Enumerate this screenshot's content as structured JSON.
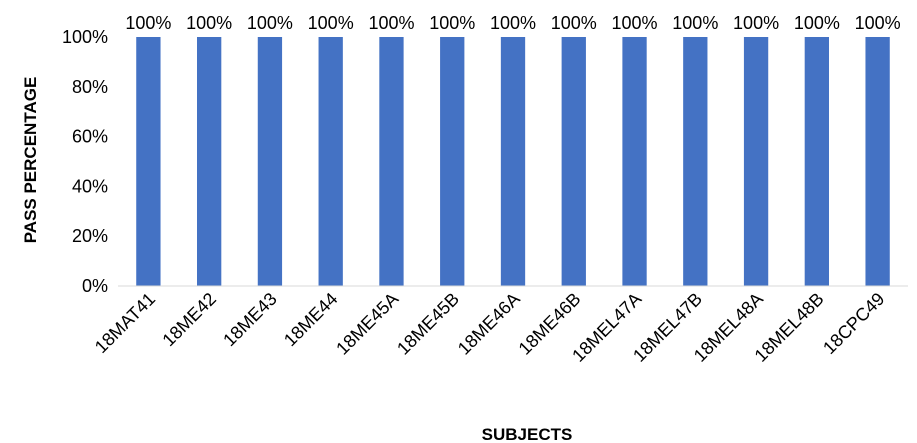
{
  "chart_data": {
    "type": "bar",
    "categories": [
      "18MAT41",
      "18ME42",
      "18ME43",
      "18ME44",
      "18ME45A",
      "18ME45B",
      "18ME46A",
      "18ME46B",
      "18MEL47A",
      "18MEL47B",
      "18MEL48A",
      "18MEL48B",
      "18CPC49"
    ],
    "values": [
      100,
      100,
      100,
      100,
      100,
      100,
      100,
      100,
      100,
      100,
      100,
      100,
      100
    ],
    "data_labels": [
      "100%",
      "100%",
      "100%",
      "100%",
      "100%",
      "100%",
      "100%",
      "100%",
      "100%",
      "100%",
      "100%",
      "100%",
      "100%"
    ],
    "title": "",
    "xlabel": "SUBJECTS",
    "ylabel": "PASS PERCENTAGE",
    "ylim": [
      0,
      100
    ],
    "yticks": [
      "0%",
      "20%",
      "40%",
      "60%",
      "80%",
      "100%"
    ],
    "grid": false,
    "legend": "none",
    "bar_color": "#4472C4"
  }
}
